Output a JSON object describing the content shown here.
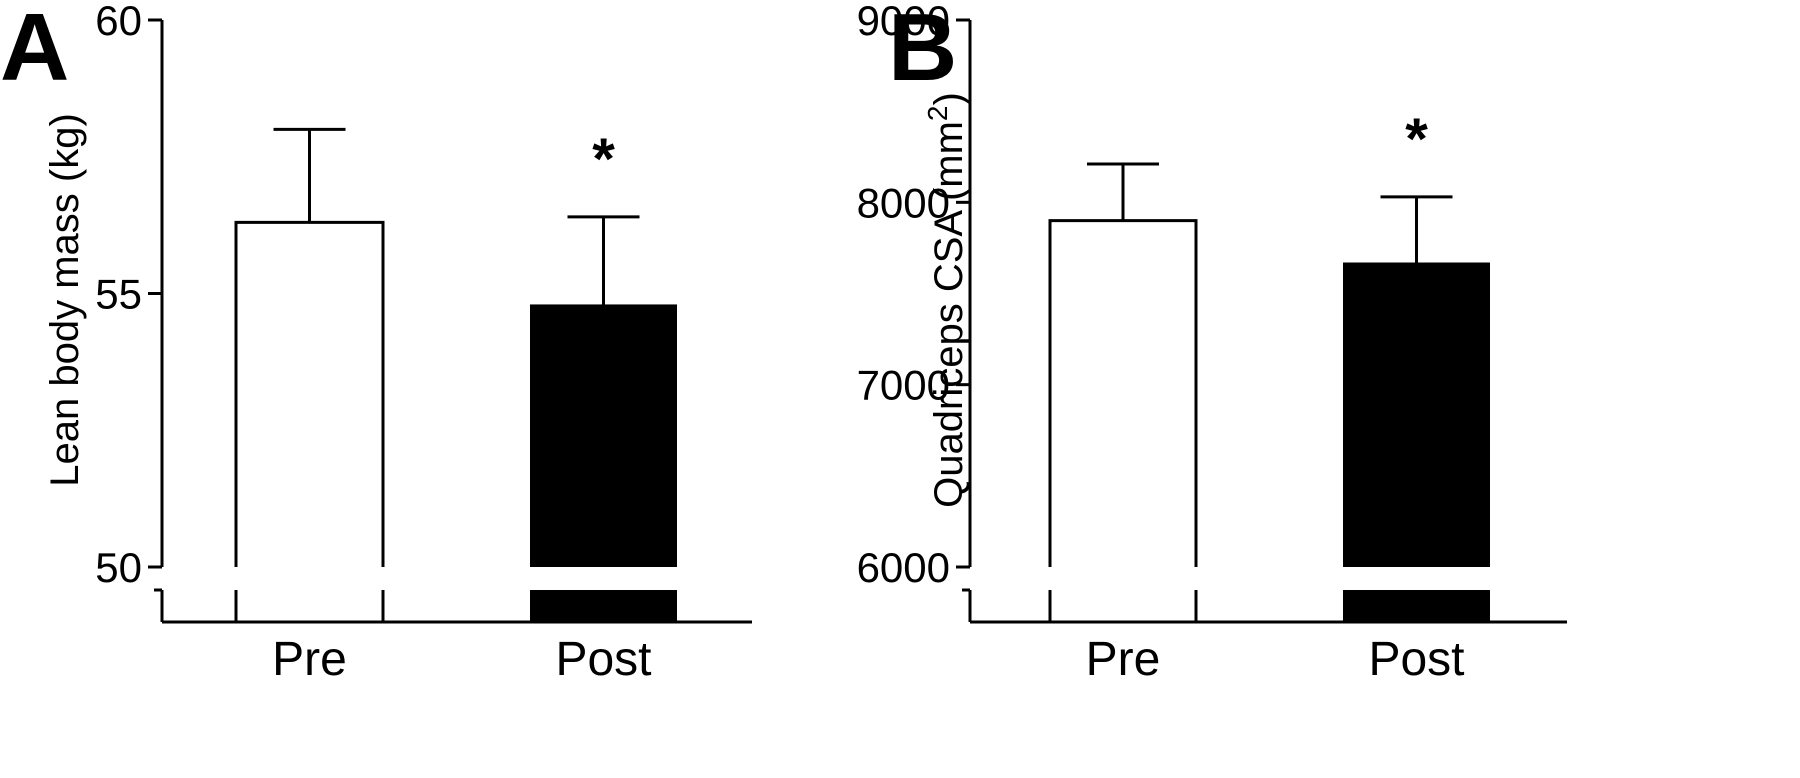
{
  "chart_data": [
    {
      "type": "bar",
      "panel_label": "A",
      "ylabel": "Lean body mass (kg)",
      "categories": [
        "Pre",
        "Post"
      ],
      "values": [
        56.3,
        54.8
      ],
      "errors": [
        1.7,
        1.6
      ],
      "significance": [
        "",
        "*"
      ],
      "bar_fill": [
        "#ffffff",
        "#000000"
      ],
      "yticks": [
        50,
        55,
        60
      ],
      "ylim": [
        50,
        60
      ],
      "axis_break": true
    },
    {
      "type": "bar",
      "panel_label": "B",
      "ylabel": "Quadriceps CSA (mm",
      "ylabel_superscript": "2",
      "ylabel_suffix": ")",
      "categories": [
        "Pre",
        "Post"
      ],
      "values": [
        7900,
        7670
      ],
      "errors": [
        310,
        360
      ],
      "significance": [
        "",
        "*"
      ],
      "bar_fill": [
        "#ffffff",
        "#000000"
      ],
      "yticks": [
        6000,
        7000,
        8000,
        9000
      ],
      "ylim": [
        6000,
        9000
      ],
      "axis_break": true
    }
  ]
}
